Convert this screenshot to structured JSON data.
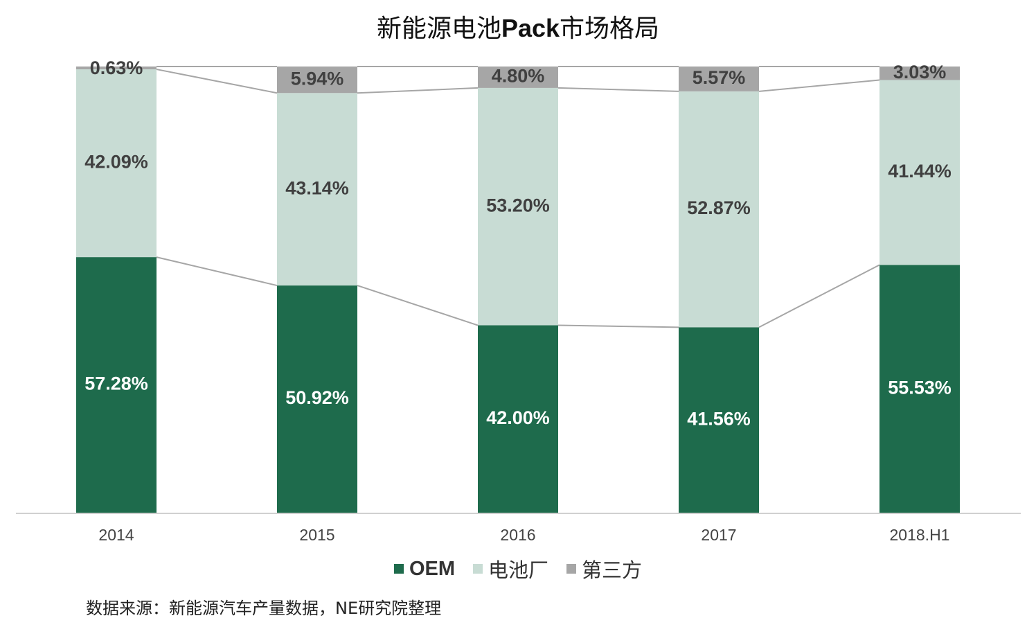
{
  "title_prefix": "新能源电池",
  "title_bold": "Pack",
  "title_suffix": "市场格局",
  "chart_data": {
    "type": "bar",
    "stacked": true,
    "title": "新能源电池Pack市场格局",
    "categories": [
      "2014",
      "2015",
      "2016",
      "2017",
      "2018.H1"
    ],
    "series": [
      {
        "name": "OEM",
        "values": [
          57.28,
          50.92,
          42.0,
          41.56,
          55.53
        ],
        "labels": [
          "57.28%",
          "50.92%",
          "42.00%",
          "41.56%",
          "55.53%"
        ],
        "color": "#1e6b4c",
        "label_color": "#ffffff"
      },
      {
        "name": "电池厂",
        "values": [
          42.09,
          43.14,
          53.2,
          52.87,
          41.44
        ],
        "labels": [
          "42.09%",
          "43.14%",
          "53.20%",
          "52.87%",
          "41.44%"
        ],
        "color": "#c8dcd4",
        "label_color": "#404040"
      },
      {
        "name": "第三方",
        "values": [
          0.63,
          5.94,
          4.8,
          5.57,
          3.03
        ],
        "labels": [
          "0.63%",
          "5.94%",
          "4.80%",
          "5.57%",
          "3.03%"
        ],
        "color": "#a6a6a6",
        "label_color": "#404040"
      }
    ],
    "ylim": [
      0,
      100
    ],
    "series_lines": true,
    "grid": false,
    "legend": "bottom-center"
  },
  "source_text": "数据来源：新能源汽车产量数据，NE研究院整理"
}
